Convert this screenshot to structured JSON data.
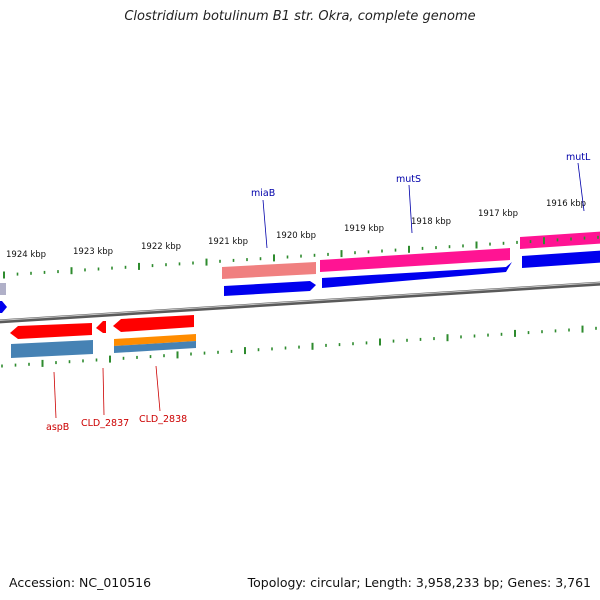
{
  "title": "Clostridium botulinum B1 str. Okra, complete genome",
  "footer": {
    "accession": "Accession: NC_010516",
    "summary": "Topology: circular; Length: 3,958,233 bp; Genes: 3,761"
  },
  "colors": {
    "backbone": "#808080",
    "tick": "#2e8b2e",
    "label_plus": "#0000aa",
    "label_minus": "#cc0000"
  },
  "tick_labels": [
    "1924 kbp",
    "1923 kbp",
    "1922 kbp",
    "1921 kbp",
    "1920 kbp",
    "1919 kbp",
    "1918 kbp",
    "1917 kbp",
    "1916 kbp"
  ],
  "features": {
    "plus_strand": [
      {
        "label": "miaB",
        "color": "#f08080",
        "cds_color": "#0000ee"
      },
      {
        "label": "mutS",
        "color": "#ff1493",
        "cds_color": "#0000ee"
      },
      {
        "label": "mutL",
        "color": "#ff1493",
        "cds_color": "#0000ee"
      }
    ],
    "minus_strand": [
      {
        "label": "aspB",
        "color": "#ff0000",
        "cds_color": "#4682b4"
      },
      {
        "label": "CLD_2837",
        "color": "#ff0000",
        "cds_color": ""
      },
      {
        "label": "CLD_2838",
        "color": "#ff0000",
        "cds_color": "#ff8c00"
      }
    ]
  }
}
